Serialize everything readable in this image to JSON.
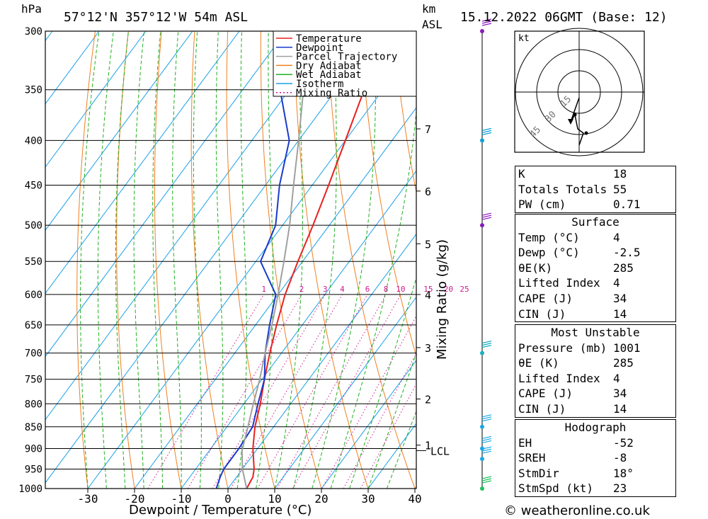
{
  "header": {
    "hpa_label": "hPa",
    "location": "57°12'N  357°12'W  54m  ASL",
    "km_label": "km",
    "asl_label": "ASL",
    "datetime": "15.12.2022  06GMT  (Base: 12)"
  },
  "chart_data": {
    "type": "line",
    "xlabel": "Dewpoint / Temperature (°C)",
    "ylabel": "hPa",
    "right_label": "Mixing Ratio (g/kg)",
    "x_ticks": [
      -30,
      -20,
      -10,
      0,
      10,
      20,
      30,
      40
    ],
    "pressure_levels": [
      300,
      350,
      400,
      450,
      500,
      550,
      600,
      650,
      700,
      750,
      800,
      850,
      900,
      950,
      1000
    ],
    "km_ticks": [
      {
        "km": "1",
        "p": 892
      },
      {
        "km": "2",
        "p": 790
      },
      {
        "km": "3",
        "p": 690
      },
      {
        "km": "4",
        "p": 600
      },
      {
        "km": "5",
        "p": 525
      },
      {
        "km": "6",
        "p": 457
      },
      {
        "km": "7",
        "p": 388
      }
    ],
    "lcl_label": "LCL",
    "lcl_pressure": 905,
    "mixing_ratio_labels": [
      "1",
      "2",
      "3",
      "4",
      "6",
      "8",
      "10",
      "15",
      "20",
      "25"
    ],
    "legend": [
      "Temperature",
      "Dewpoint",
      "Parcel Trajectory",
      "Dry Adiabat",
      "Wet Adiabat",
      "Isotherm",
      "Mixing Ratio"
    ],
    "series": [
      {
        "name": "Temperature",
        "color": "#e82020",
        "points": [
          [
            1000,
            4
          ],
          [
            970,
            3.5
          ],
          [
            950,
            2.5
          ],
          [
            900,
            -1
          ],
          [
            850,
            -4
          ],
          [
            800,
            -6.5
          ],
          [
            750,
            -9.5
          ],
          [
            700,
            -12.5
          ],
          [
            650,
            -15.5
          ],
          [
            600,
            -18.5
          ],
          [
            550,
            -21
          ],
          [
            500,
            -23.5
          ],
          [
            450,
            -26.5
          ],
          [
            400,
            -30
          ],
          [
            350,
            -34
          ],
          [
            300,
            -37
          ]
        ]
      },
      {
        "name": "Dewpoint",
        "color": "#1a3acc",
        "points": [
          [
            1000,
            -2.5
          ],
          [
            970,
            -3.5
          ],
          [
            950,
            -4
          ],
          [
            900,
            -4
          ],
          [
            850,
            -4.5
          ],
          [
            800,
            -7
          ],
          [
            750,
            -9.5
          ],
          [
            700,
            -13.5
          ],
          [
            650,
            -17
          ],
          [
            600,
            -20.5
          ],
          [
            550,
            -29
          ],
          [
            500,
            -31.5
          ],
          [
            450,
            -37
          ],
          [
            400,
            -42
          ],
          [
            350,
            -52
          ],
          [
            300,
            -56
          ]
        ]
      },
      {
        "name": "Parcel Trajectory",
        "color": "#a0a0a0",
        "points": [
          [
            1000,
            4
          ],
          [
            950,
            0
          ],
          [
            905,
            -3
          ],
          [
            850,
            -5.5
          ],
          [
            800,
            -8
          ],
          [
            750,
            -10.5
          ],
          [
            700,
            -13.5
          ],
          [
            650,
            -16.5
          ],
          [
            600,
            -20
          ],
          [
            550,
            -24
          ],
          [
            500,
            -28.5
          ],
          [
            450,
            -34
          ],
          [
            400,
            -40
          ],
          [
            350,
            -47
          ],
          [
            300,
            -55
          ]
        ]
      }
    ],
    "wind_barbs": [
      {
        "p": 300,
        "color": "#8a1ab8"
      },
      {
        "p": 400,
        "color": "#10a0d8"
      },
      {
        "p": 500,
        "color": "#8a1ab8"
      },
      {
        "p": 700,
        "color": "#18b0c0"
      },
      {
        "p": 850,
        "color": "#18a8e8"
      },
      {
        "p": 900,
        "color": "#18a8e8"
      },
      {
        "p": 925,
        "color": "#18a8e8"
      },
      {
        "p": 1000,
        "color": "#20c060"
      }
    ],
    "hodograph": {
      "unit": "kt",
      "rings": [
        "15",
        "30",
        "45"
      ]
    }
  },
  "indices": {
    "k": {
      "label": "K",
      "value": "18"
    },
    "tt": {
      "label": "Totals Totals",
      "value": "55"
    },
    "pw": {
      "label": "PW (cm)",
      "value": "0.71"
    }
  },
  "surface": {
    "title": "Surface",
    "temp": {
      "label": "Temp (°C)",
      "value": "4"
    },
    "dewp": {
      "label": "Dewp (°C)",
      "value": "-2.5"
    },
    "theta_e": {
      "label": "θE(K)",
      "value": "285"
    },
    "lifted": {
      "label": "Lifted Index",
      "value": "4"
    },
    "cape": {
      "label": "CAPE (J)",
      "value": "34"
    },
    "cin": {
      "label": "CIN (J)",
      "value": "14"
    }
  },
  "most_unstable": {
    "title": "Most Unstable",
    "pressure": {
      "label": "Pressure (mb)",
      "value": "1001"
    },
    "theta_e": {
      "label": "θE (K)",
      "value": "285"
    },
    "lifted": {
      "label": "Lifted Index",
      "value": "4"
    },
    "cape": {
      "label": "CAPE (J)",
      "value": "34"
    },
    "cin": {
      "label": "CIN (J)",
      "value": "14"
    }
  },
  "hodograph_table": {
    "title": "Hodograph",
    "eh": {
      "label": "EH",
      "value": "-52"
    },
    "sreh": {
      "label": "SREH",
      "value": "-8"
    },
    "stmdir": {
      "label": "StmDir",
      "value": "18°"
    },
    "stmspd": {
      "label": "StmSpd (kt)",
      "value": "23"
    }
  },
  "credit": "© weatheronline.co.uk"
}
